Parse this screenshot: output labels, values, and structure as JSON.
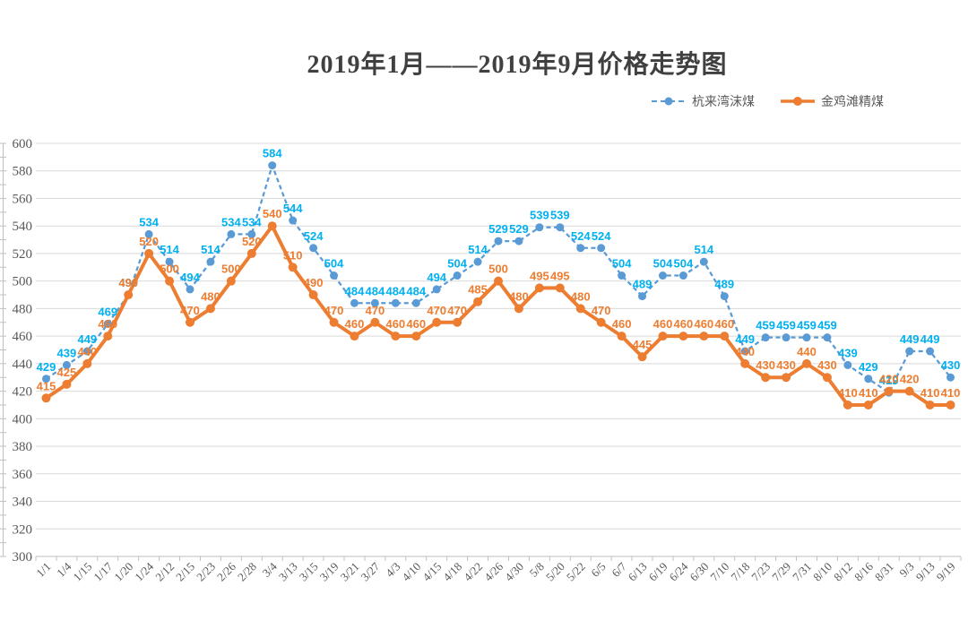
{
  "chart_data": {
    "type": "line",
    "title": "2019年1月——2019年9月价格走势图",
    "categories": [
      "1/1",
      "1/4",
      "1/15",
      "1/17",
      "1/20",
      "1/24",
      "2/12",
      "2/15",
      "2/23",
      "2/26",
      "2/28",
      "3/4",
      "3/13",
      "3/15",
      "3/19",
      "3/21",
      "3/27",
      "4/3",
      "4/10",
      "4/15",
      "4/18",
      "4/22",
      "4/26",
      "4/30",
      "5/8",
      "5/20",
      "5/22",
      "6/5",
      "6/7",
      "6/13",
      "6/19",
      "6/24",
      "6/30",
      "7/10",
      "7/18",
      "7/23",
      "7/29",
      "7/31",
      "8/10",
      "8/12",
      "8/16",
      "8/31",
      "9/3",
      "9/13",
      "9/19"
    ],
    "series": [
      {
        "name": "杭来湾沫煤",
        "style": "dashed",
        "color": "#5B9BD5",
        "label_color": "#00B0F0",
        "values": [
          429,
          439,
          449,
          469,
          490,
          534,
          514,
          494,
          514,
          534,
          534,
          584,
          544,
          524,
          504,
          484,
          484,
          484,
          484,
          494,
          504,
          514,
          529,
          529,
          539,
          539,
          524,
          524,
          504,
          489,
          504,
          504,
          514,
          489,
          449,
          459,
          459,
          459,
          459,
          439,
          429,
          419,
          449,
          449,
          430
        ]
      },
      {
        "name": "金鸡滩精煤",
        "style": "solid",
        "color": "#ED7D31",
        "label_color": "#ED7D31",
        "values": [
          415,
          425,
          440,
          460,
          490,
          520,
          500,
          470,
          480,
          500,
          520,
          540,
          510,
          490,
          470,
          460,
          470,
          460,
          460,
          470,
          470,
          485,
          500,
          480,
          495,
          495,
          480,
          470,
          460,
          445,
          460,
          460,
          460,
          460,
          440,
          430,
          430,
          440,
          430,
          410,
          410,
          420,
          420,
          410,
          410
        ]
      }
    ],
    "xlabel": "",
    "ylabel": "",
    "ylim": [
      300,
      600
    ],
    "ytick_step": 20,
    "grid": true,
    "legend_position": "top-right",
    "colors": {
      "grid": "#D9D9D9",
      "axis": "#BFBFBF",
      "axis_text": "#595959",
      "title_text": "#404040",
      "legend_text": "#595959",
      "background": "#FFFFFF"
    }
  }
}
